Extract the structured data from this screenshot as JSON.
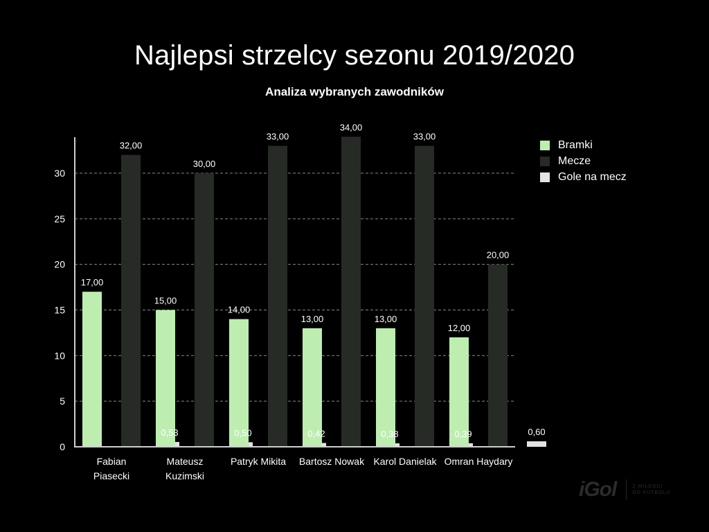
{
  "title": "Najlepsi strzelcy sezonu 2019/2020",
  "subtitle": "Analiza wybranych zawodników",
  "colors": {
    "background": "#000000",
    "bramki": "#bdeeb0",
    "mecze": "#262b26",
    "gole_na_mecz": "#e3e3e3",
    "grid": "#8a8a8a",
    "axis": "#cfcfcf",
    "text": "#ffffff"
  },
  "logo": {
    "name": "iGol",
    "tagline_line1": "Z MIŁOŚCI",
    "tagline_line2": "DO FUTBOLU"
  },
  "chart_data": {
    "type": "bar",
    "title": "Najlepsi strzelcy sezonu 2019/2020",
    "subtitle": "Analiza wybranych zawodników",
    "xlabel": "",
    "ylabel": "",
    "ylim": [
      0,
      34
    ],
    "yticks": [
      0,
      5,
      10,
      15,
      20,
      25,
      30
    ],
    "grid": true,
    "legend_position": "right",
    "categories": [
      [
        "Fabian",
        "Piasecki"
      ],
      [
        "Mateusz",
        "Kuzimski"
      ],
      [
        "Patryk Mikita"
      ],
      [
        "Bartosz Nowak"
      ],
      [
        "Karol Danielak"
      ],
      [
        "Omran Haydary"
      ]
    ],
    "series": [
      {
        "name": "Bramki",
        "color": "#bdeeb0",
        "values": [
          17,
          15,
          14,
          13,
          13,
          12
        ],
        "labels": [
          "17,00",
          "15,00",
          "14,00",
          "13,00",
          "13,00",
          "12,00"
        ]
      },
      {
        "name": "Mecze",
        "color": "#262b26",
        "values": [
          32,
          30,
          33,
          34,
          33,
          20
        ],
        "labels": [
          "32,00",
          "30,00",
          "33,00",
          "34,00",
          "33,00",
          "20,00"
        ]
      },
      {
        "name": "Gole na mecz",
        "color": "#e3e3e3",
        "values": [
          0.53,
          0.5,
          0.42,
          0.38,
          0.39,
          0.6
        ],
        "labels": [
          "0,53",
          "0,50",
          "0,42",
          "0,38",
          "0,39",
          "0,60"
        ]
      }
    ]
  }
}
